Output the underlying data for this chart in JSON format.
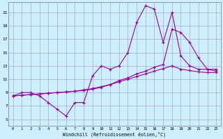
{
  "xlabel": "Windchill (Refroidissement éolien,°C)",
  "bg_color": "#cceeff",
  "grid_color": "#aaaacc",
  "line_color": "#990099",
  "x_ticks": [
    0,
    1,
    2,
    3,
    4,
    5,
    6,
    7,
    8,
    9,
    10,
    11,
    12,
    13,
    14,
    15,
    16,
    17,
    18,
    19,
    20,
    21,
    22,
    23
  ],
  "y_ticks": [
    5,
    7,
    9,
    11,
    13,
    15,
    17,
    19,
    21
  ],
  "xlim": [
    -0.5,
    23.5
  ],
  "ylim": [
    4.0,
    22.5
  ],
  "curve1_x": [
    0,
    1,
    2,
    3,
    4,
    5,
    6,
    7,
    8,
    9,
    10,
    11,
    12,
    13,
    14,
    15,
    16,
    17,
    18,
    19,
    20,
    21,
    22,
    23
  ],
  "curve1_y": [
    8.5,
    9.0,
    9.0,
    8.5,
    7.5,
    6.5,
    5.5,
    7.5,
    7.5,
    11.5,
    13.0,
    12.5,
    13.0,
    15.0,
    19.5,
    22.0,
    21.5,
    16.5,
    21.0,
    14.5,
    13.0,
    12.5,
    12.5,
    12.5
  ],
  "curve2_x": [
    0,
    1,
    2,
    3,
    4,
    5,
    6,
    7,
    8,
    9,
    10,
    11,
    12,
    13,
    14,
    15,
    16,
    17,
    18,
    19,
    20,
    21,
    22,
    23
  ],
  "curve2_y": [
    8.5,
    8.6,
    8.7,
    8.8,
    8.9,
    9.0,
    9.1,
    9.2,
    9.3,
    9.5,
    9.8,
    10.2,
    10.8,
    11.2,
    11.8,
    12.2,
    12.8,
    13.2,
    18.5,
    18.0,
    16.5,
    14.2,
    12.5,
    12.2
  ],
  "curve3_x": [
    0,
    1,
    2,
    3,
    4,
    5,
    6,
    7,
    8,
    9,
    10,
    11,
    12,
    13,
    14,
    15,
    16,
    17,
    18,
    19,
    20,
    21,
    22,
    23
  ],
  "curve3_y": [
    8.5,
    8.6,
    8.7,
    8.8,
    8.9,
    9.0,
    9.1,
    9.2,
    9.4,
    9.6,
    9.9,
    10.2,
    10.6,
    11.0,
    11.4,
    11.8,
    12.2,
    12.6,
    13.0,
    12.5,
    12.3,
    12.1,
    12.0,
    12.0
  ]
}
